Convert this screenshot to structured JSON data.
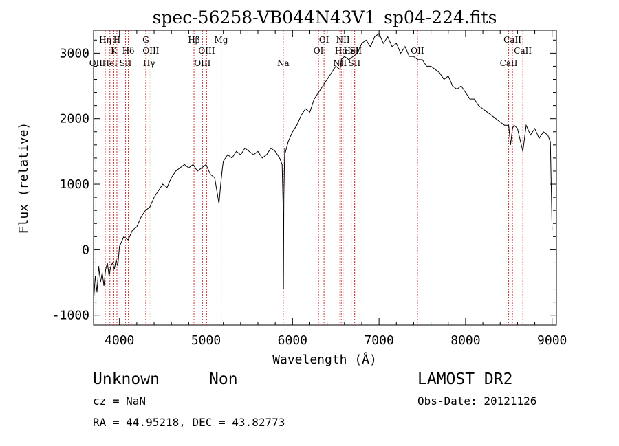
{
  "chart_data": {
    "type": "line",
    "title": "spec-56258-VB044N43V1_sp04-224.fits",
    "xlabel": "Wavelength (Å)",
    "ylabel": "Flux (relative)",
    "xlim": [
      3700,
      9050
    ],
    "ylim": [
      -1150,
      3350
    ],
    "x_ticks": [
      4000,
      5000,
      6000,
      7000,
      8000,
      9000
    ],
    "y_ticks": [
      -1000,
      0,
      1000,
      2000,
      3000
    ],
    "grid": false,
    "line_color": "#000000",
    "marker_color": "#cc3333",
    "series": [
      {
        "x": [
          3700,
          3720,
          3740,
          3760,
          3780,
          3800,
          3820,
          3840,
          3860,
          3880,
          3900,
          3920,
          3940,
          3960,
          3980,
          4000,
          4050,
          4100,
          4150,
          4200,
          4250,
          4300,
          4350,
          4400,
          4450,
          4500,
          4550,
          4600,
          4650,
          4700,
          4750,
          4800,
          4850,
          4900,
          4950,
          5000,
          5050,
          5100,
          5150,
          5170,
          5190,
          5200,
          5250,
          5300,
          5350,
          5400,
          5450,
          5500,
          5550,
          5600,
          5650,
          5700,
          5750,
          5800,
          5850,
          5880,
          5890,
          5895,
          5900,
          5910,
          5920,
          5950,
          6000,
          6050,
          6100,
          6150,
          6200,
          6250,
          6300,
          6350,
          6400,
          6450,
          6500,
          6550,
          6563,
          6600,
          6650,
          6700,
          6750,
          6800,
          6850,
          6900,
          6950,
          7000,
          7050,
          7100,
          7150,
          7200,
          7250,
          7300,
          7350,
          7400,
          7450,
          7500,
          7550,
          7600,
          7650,
          7700,
          7750,
          7800,
          7850,
          7900,
          7950,
          8000,
          8050,
          8100,
          8150,
          8200,
          8250,
          8300,
          8350,
          8400,
          8450,
          8498,
          8520,
          8542,
          8560,
          8600,
          8662,
          8700,
          8750,
          8800,
          8850,
          8900,
          8950,
          8980,
          9000
        ],
        "y": [
          -800,
          -400,
          -650,
          -250,
          -500,
          -350,
          -550,
          -300,
          -200,
          -400,
          -250,
          -200,
          -300,
          -150,
          -250,
          50,
          200,
          150,
          300,
          350,
          500,
          600,
          650,
          800,
          900,
          1000,
          950,
          1100,
          1200,
          1250,
          1300,
          1250,
          1300,
          1200,
          1250,
          1300,
          1150,
          1100,
          700,
          1000,
          1250,
          1350,
          1450,
          1400,
          1500,
          1450,
          1550,
          1500,
          1450,
          1500,
          1400,
          1450,
          1550,
          1500,
          1400,
          1300,
          700,
          -600,
          800,
          1550,
          1500,
          1650,
          1800,
          1900,
          2050,
          2150,
          2100,
          2300,
          2400,
          2500,
          2600,
          2700,
          2800,
          2750,
          2900,
          2950,
          2900,
          2950,
          3000,
          3150,
          3200,
          3100,
          3250,
          3300,
          3150,
          3250,
          3100,
          3150,
          3000,
          3100,
          2950,
          2950,
          2900,
          2900,
          2800,
          2800,
          2750,
          2700,
          2600,
          2650,
          2500,
          2450,
          2500,
          2400,
          2300,
          2300,
          2200,
          2150,
          2100,
          2050,
          2000,
          1950,
          1900,
          1900,
          1600,
          1850,
          1900,
          1850,
          1500,
          1900,
          1750,
          1850,
          1700,
          1800,
          1750,
          1650,
          300
        ]
      }
    ],
    "line_markers": [
      {
        "wl": 3727,
        "top": "",
        "mid": "",
        "low": "OII"
      },
      {
        "wl": 3835,
        "top": "Hη",
        "mid": "",
        "low": ""
      },
      {
        "wl": 3889,
        "top": "",
        "mid": "",
        "low": "HeI"
      },
      {
        "wl": 3934,
        "top": "",
        "mid": "K",
        "low": ""
      },
      {
        "wl": 3970,
        "top": "H",
        "mid": "",
        "low": ""
      },
      {
        "wl": 4070,
        "top": "",
        "mid": "",
        "low": "SII"
      },
      {
        "wl": 4102,
        "top": "",
        "mid": "Hδ",
        "low": ""
      },
      {
        "wl": 4304,
        "top": "G",
        "mid": "",
        "low": ""
      },
      {
        "wl": 4341,
        "top": "",
        "mid": "",
        "low": "Hγ"
      },
      {
        "wl": 4363,
        "top": "",
        "mid": "OIII",
        "low": ""
      },
      {
        "wl": 4861,
        "top": "Hβ",
        "mid": "",
        "low": ""
      },
      {
        "wl": 4959,
        "top": "",
        "mid": "",
        "low": "OIII"
      },
      {
        "wl": 5007,
        "top": "",
        "mid": "OIII",
        "low": ""
      },
      {
        "wl": 5175,
        "top": "Mg",
        "mid": "",
        "low": ""
      },
      {
        "wl": 5893,
        "top": "",
        "mid": "",
        "low": "Na"
      },
      {
        "wl": 6300,
        "top": "",
        "mid": "OI",
        "low": ""
      },
      {
        "wl": 6364,
        "top": "OI",
        "mid": "",
        "low": ""
      },
      {
        "wl": 6548,
        "top": "",
        "mid": "",
        "low": "NII"
      },
      {
        "wl": 6563,
        "top": "",
        "mid": "Hα",
        "low": ""
      },
      {
        "wl": 6583,
        "top": "NII",
        "mid": "",
        "low": ""
      },
      {
        "wl": 6678,
        "top": "",
        "mid": "HeI",
        "low": ""
      },
      {
        "wl": 6716,
        "top": "",
        "mid": "",
        "low": "SII"
      },
      {
        "wl": 6731,
        "top": "",
        "mid": "SII",
        "low": ""
      },
      {
        "wl": 7444,
        "top": "",
        "mid": "OII",
        "low": ""
      },
      {
        "wl": 8498,
        "top": "",
        "mid": "",
        "low": "CaII"
      },
      {
        "wl": 8542,
        "top": "CaII",
        "mid": "",
        "low": ""
      },
      {
        "wl": 8662,
        "top": "",
        "mid": "CaII",
        "low": ""
      }
    ]
  },
  "info": {
    "class": "Unknown",
    "subclass": "Non",
    "survey": "LAMOST DR2",
    "cz": "cz = NaN",
    "obs_date": "Obs-Date: 20121126",
    "radec": "RA =  44.95218, DEC =  43.82773"
  }
}
